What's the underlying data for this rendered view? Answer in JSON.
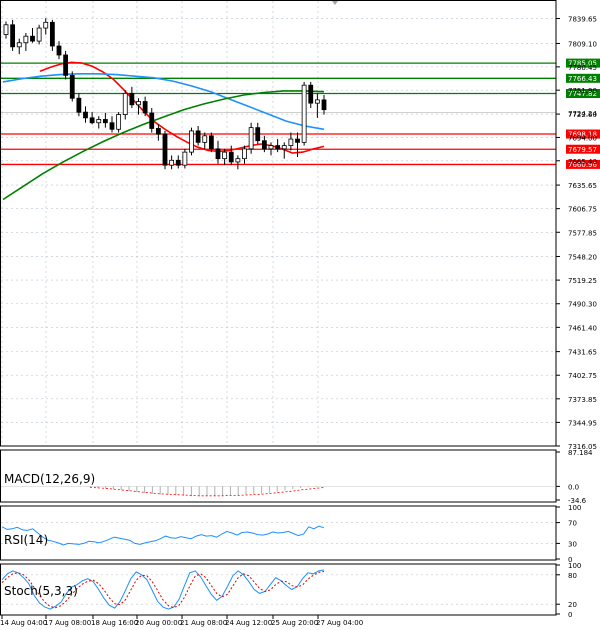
{
  "chart_data": [
    {
      "type": "candlestick",
      "title": "",
      "ylim": [
        7316.05,
        7855
      ],
      "y_ticks": [
        "7839.65",
        "7809.10",
        "7780.45",
        "7751.90",
        "7722.60",
        "7694.00",
        "7665.40",
        "7635.65",
        "7606.75",
        "7577.85",
        "7548.20",
        "7519.25",
        "7490.30",
        "7461.40",
        "7431.65",
        "7402.75",
        "7373.85",
        "7344.95",
        "7316.05"
      ],
      "current_price": "7724.24",
      "levels": [
        {
          "label": "7785.05",
          "color": "#008000"
        },
        {
          "label": "7766.43",
          "color": "#008000"
        },
        {
          "label": "7747.82",
          "color": "#008000"
        },
        {
          "label": "7698.18",
          "color": "#ff0000"
        },
        {
          "label": "7679.57",
          "color": "#ff0000"
        },
        {
          "label": "7660.96",
          "color": "#ff0000"
        }
      ],
      "level_values": [
        7785.05,
        7766.43,
        7747.82,
        7698.18,
        7679.57,
        7660.96
      ],
      "candles": [
        [
          7820,
          7836,
          7815,
          7832
        ],
        [
          7832,
          7838,
          7800,
          7805
        ],
        [
          7805,
          7815,
          7796,
          7810
        ],
        [
          7810,
          7822,
          7800,
          7818
        ],
        [
          7818,
          7828,
          7810,
          7812
        ],
        [
          7812,
          7832,
          7808,
          7828
        ],
        [
          7828,
          7840,
          7820,
          7835
        ],
        [
          7835,
          7838,
          7800,
          7806
        ],
        [
          7806,
          7812,
          7790,
          7795
        ],
        [
          7795,
          7800,
          7765,
          7770
        ],
        [
          7770,
          7775,
          7738,
          7742
        ],
        [
          7742,
          7748,
          7720,
          7725
        ],
        [
          7725,
          7732,
          7712,
          7718
        ],
        [
          7718,
          7725,
          7710,
          7712
        ],
        [
          7712,
          7720,
          7705,
          7716
        ],
        [
          7716,
          7724,
          7706,
          7712
        ],
        [
          7712,
          7720,
          7700,
          7704
        ],
        [
          7704,
          7725,
          7700,
          7722
        ],
        [
          7722,
          7752,
          7716,
          7748
        ],
        [
          7748,
          7756,
          7730,
          7734
        ],
        [
          7734,
          7742,
          7722,
          7738
        ],
        [
          7738,
          7744,
          7720,
          7724
        ],
        [
          7724,
          7730,
          7700,
          7705
        ],
        [
          7705,
          7710,
          7690,
          7698
        ],
        [
          7698,
          7702,
          7655,
          7660
        ],
        [
          7660,
          7672,
          7655,
          7666
        ],
        [
          7666,
          7672,
          7656,
          7660
        ],
        [
          7660,
          7680,
          7656,
          7676
        ],
        [
          7676,
          7706,
          7672,
          7702
        ],
        [
          7702,
          7708,
          7684,
          7688
        ],
        [
          7688,
          7700,
          7680,
          7696
        ],
        [
          7696,
          7700,
          7676,
          7680
        ],
        [
          7680,
          7690,
          7662,
          7668
        ],
        [
          7668,
          7680,
          7660,
          7676
        ],
        [
          7676,
          7684,
          7660,
          7664
        ],
        [
          7664,
          7672,
          7655,
          7668
        ],
        [
          7668,
          7684,
          7662,
          7680
        ],
        [
          7680,
          7712,
          7674,
          7706
        ],
        [
          7706,
          7712,
          7686,
          7690
        ],
        [
          7690,
          7696,
          7676,
          7680
        ],
        [
          7680,
          7688,
          7672,
          7684
        ],
        [
          7684,
          7692,
          7676,
          7680
        ],
        [
          7680,
          7688,
          7668,
          7684
        ],
        [
          7684,
          7700,
          7678,
          7692
        ],
        [
          7692,
          7700,
          7670,
          7688
        ],
        [
          7688,
          7762,
          7684,
          7758
        ],
        [
          7758,
          7762,
          7730,
          7736
        ],
        [
          7736,
          7748,
          7718,
          7740
        ],
        [
          7740,
          7746,
          7722,
          7728
        ]
      ],
      "series": [
        {
          "color": "#ff0000",
          "values": [
            7775,
            7780,
            7784,
            7786,
            7785,
            7781,
            7774,
            7765,
            7752,
            7738,
            7724,
            7712,
            7703,
            7695,
            7688,
            7682,
            7678,
            7677,
            7678,
            7681,
            7684,
            7686,
            7684,
            7680,
            7675,
            7676,
            7680,
            7683
          ]
        },
        {
          "color": "#1e90ff",
          "values": [
            7762,
            7766,
            7769,
            7771,
            7772,
            7772,
            7771,
            7769,
            7767,
            7763,
            7757,
            7750,
            7741,
            7732,
            7723,
            7714,
            7708,
            7704
          ]
        },
        {
          "color": "#008000",
          "values": [
            7618,
            7634,
            7650,
            7664,
            7677,
            7689,
            7700,
            7710,
            7719,
            7728,
            7735,
            7741,
            7746,
            7749,
            7751,
            7751,
            7750
          ]
        }
      ],
      "x_ticks": [
        "14 Aug 04:00",
        "17 Aug 08:00",
        "18 Aug 16:00",
        "20 Aug 00:00",
        "21 Aug 08:00",
        "24 Aug 12:00",
        "25 Aug 20:00",
        "27 Aug 04:00"
      ]
    },
    {
      "type": "histogram",
      "title": "MACD(12,26,9)",
      "ylim": [
        -34.6,
        87.184
      ],
      "y_ticks": [
        "87.184",
        "0.0",
        "-34.6"
      ],
      "bars": [
        -3,
        -5,
        -6,
        -8,
        -10,
        -12,
        -15,
        -17,
        -19,
        -21,
        -22,
        -23,
        -24,
        -25,
        -25,
        -25,
        -24,
        -24,
        -23,
        -22,
        -21,
        -20,
        -18,
        -16,
        -13,
        -10,
        -7,
        -4,
        -2,
        -1,
        0
      ],
      "signal": [
        -2,
        -4,
        -5,
        -7,
        -9,
        -11,
        -13,
        -15,
        -17,
        -19,
        -20,
        -21,
        -22,
        -23,
        -24,
        -24,
        -24,
        -24,
        -23,
        -23,
        -22,
        -21,
        -20,
        -18,
        -16,
        -14,
        -12,
        -9,
        -7,
        -5,
        -3
      ]
    },
    {
      "type": "line",
      "title": "RSI(14)",
      "ylim": [
        0,
        100
      ],
      "y_ticks": [
        "100",
        "70",
        "30",
        "0"
      ],
      "series": [
        {
          "color": "#1e90ff",
          "values": [
            62,
            57,
            58,
            61,
            56,
            55,
            58,
            50,
            42,
            36,
            34,
            31,
            27,
            30,
            29,
            28,
            30,
            34,
            33,
            31,
            34,
            38,
            42,
            40,
            38,
            36,
            30,
            28,
            31,
            33,
            35,
            39,
            44,
            41,
            40,
            43,
            41,
            39,
            44,
            47,
            44,
            45,
            42,
            48,
            53,
            50,
            46,
            51,
            52,
            50,
            47,
            46,
            48,
            52,
            50,
            51,
            53,
            49,
            45,
            48,
            62,
            58,
            63,
            60
          ]
        }
      ]
    },
    {
      "type": "line",
      "title": "Stoch(5,3,3)",
      "ylim": [
        0,
        100
      ],
      "y_ticks": [
        "100",
        "80",
        "20",
        "0"
      ],
      "series": [
        {
          "color": "#1e90ff",
          "values": [
            70,
            82,
            88,
            84,
            74,
            62,
            38,
            22,
            14,
            10,
            16,
            24,
            42,
            55,
            60,
            68,
            72,
            66,
            50,
            32,
            18,
            12,
            26,
            48,
            72,
            86,
            80,
            70,
            48,
            26,
            14,
            10,
            14,
            30,
            58,
            84,
            88,
            76,
            58,
            40,
            28,
            36,
            56,
            78,
            88,
            80,
            66,
            50,
            42,
            46,
            60,
            74,
            68,
            58,
            50,
            56,
            72,
            84,
            82,
            88,
            90
          ]
        },
        {
          "color": "#dc0000",
          "values": [
            64,
            74,
            82,
            84,
            80,
            70,
            54,
            38,
            24,
            15,
            13,
            17,
            27,
            40,
            52,
            61,
            67,
            69,
            62,
            49,
            33,
            21,
            19,
            29,
            49,
            69,
            79,
            78,
            66,
            48,
            29,
            17,
            13,
            18,
            34,
            57,
            77,
            82,
            74,
            58,
            42,
            35,
            40,
            57,
            74,
            82,
            78,
            65,
            52,
            46,
            49,
            60,
            67,
            66,
            58,
            55,
            59,
            71,
            79,
            85,
            87
          ]
        }
      ],
      "dashed_series": [
        1
      ]
    }
  ]
}
